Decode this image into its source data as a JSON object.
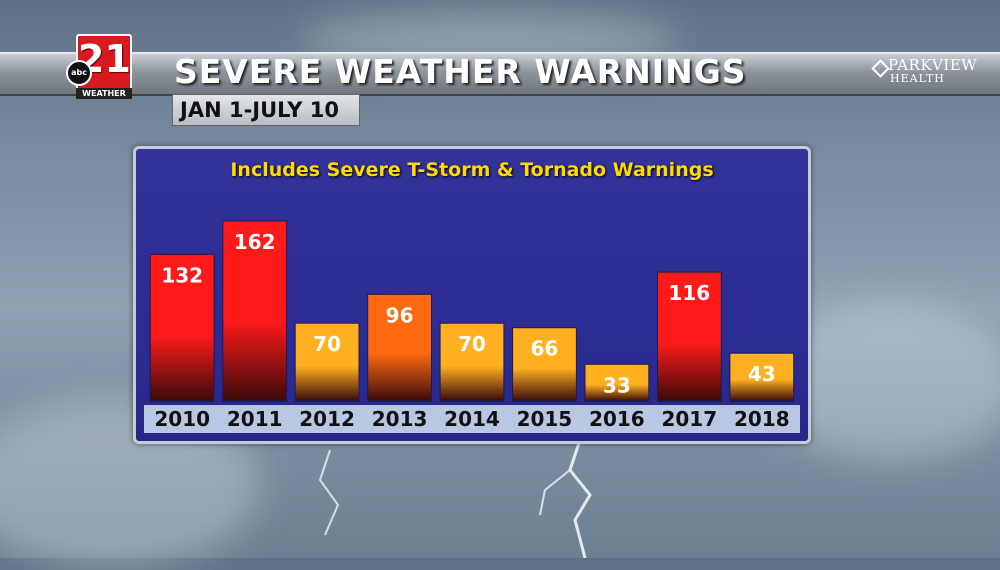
{
  "header": {
    "title": "SEVERE WEATHER WARNINGS",
    "subtitle": "JAN 1-JULY 10"
  },
  "logo": {
    "number": "21",
    "network": "abc",
    "tagline": "WEATHER"
  },
  "sponsor": {
    "name": "PARKVIEW",
    "sub": "HEALTH"
  },
  "colors": {
    "high": "#ff1a1a",
    "mid": "#ff6a10",
    "low": "#ffb020",
    "panel": "#2c2c92",
    "subtitle_text": "#ffd900",
    "axis_strip": "#b9c6e4"
  },
  "chart_data": {
    "type": "bar",
    "title": "SEVERE WEATHER WARNINGS",
    "subtitle": "Includes Severe T-Storm & Tornado Warnings",
    "categories": [
      "2010",
      "2011",
      "2012",
      "2013",
      "2014",
      "2015",
      "2016",
      "2017",
      "2018"
    ],
    "values": [
      132,
      162,
      70,
      96,
      70,
      66,
      33,
      116,
      43
    ],
    "color_levels": [
      "high",
      "high",
      "low",
      "mid",
      "low",
      "low",
      "low",
      "high",
      "low"
    ],
    "ylim": [
      0,
      180
    ],
    "grid": false,
    "legend": "none",
    "xlabel": "",
    "ylabel": ""
  }
}
